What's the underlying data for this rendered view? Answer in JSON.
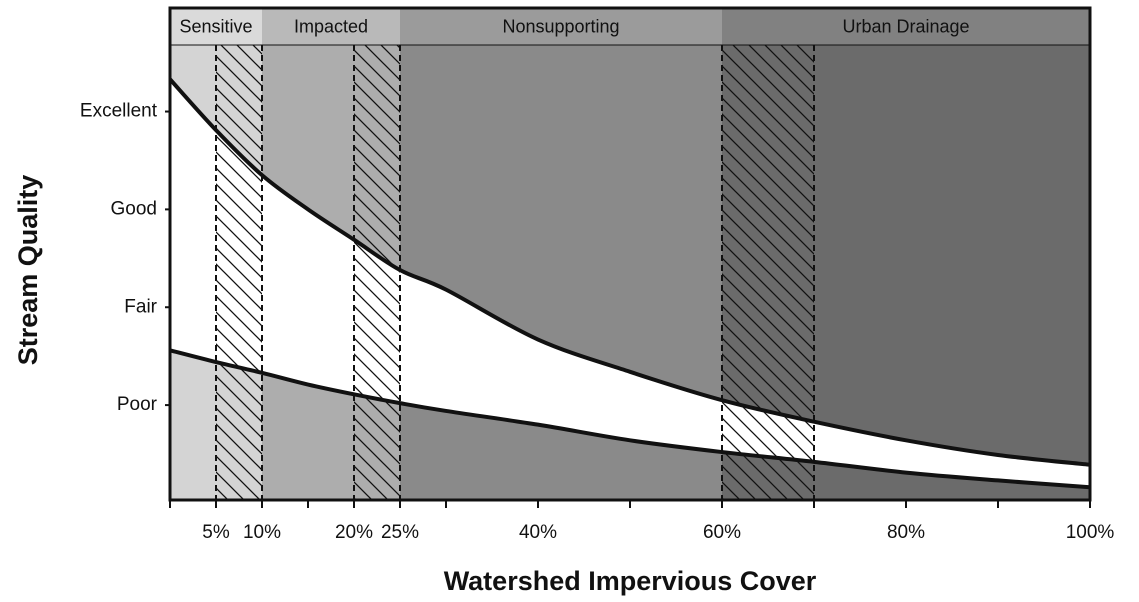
{
  "chart_data": {
    "type": "line",
    "xlabel": "Watershed Impervious Cover",
    "ylabel": "Stream Quality",
    "xlim": [
      0,
      100
    ],
    "xticks": [
      {
        "value": 5,
        "label": "5%"
      },
      {
        "value": 10,
        "label": "10%"
      },
      {
        "value": 20,
        "label": "20%"
      },
      {
        "value": 25,
        "label": "25%"
      },
      {
        "value": 40,
        "label": "40%"
      },
      {
        "value": 60,
        "label": "60%"
      },
      {
        "value": 80,
        "label": "80%"
      },
      {
        "value": 100,
        "label": "100%"
      }
    ],
    "xminor_ticks": [
      0,
      15,
      30,
      50,
      70,
      90
    ],
    "ylim": [
      -0.97,
      3.68
    ],
    "yticks": [
      {
        "value": 0,
        "label": "Poor"
      },
      {
        "value": 1,
        "label": "Fair"
      },
      {
        "value": 2,
        "label": "Good"
      },
      {
        "value": 3,
        "label": "Excellent"
      }
    ],
    "zones": [
      {
        "name": "Sensitive",
        "start": 0,
        "end": 10,
        "color": "#d4d4d4"
      },
      {
        "name": "Impacted",
        "start": 10,
        "end": 25,
        "color": "#adadad"
      },
      {
        "name": "Nonsupporting",
        "start": 25,
        "end": 60,
        "color": "#8a8a8a"
      },
      {
        "name": "Urban Drainage",
        "start": 60,
        "end": 100,
        "color": "#6b6b6b"
      }
    ],
    "transitions": [
      [
        5,
        10
      ],
      [
        20,
        25
      ],
      [
        60,
        70
      ]
    ],
    "x": [
      0,
      5,
      10,
      15,
      20,
      25,
      30,
      40,
      50,
      60,
      70,
      80,
      90,
      100
    ],
    "series": [
      {
        "color": "#111111",
        "values": [
          3.33,
          2.81,
          2.35,
          2.0,
          1.69,
          1.38,
          1.18,
          0.67,
          0.34,
          0.05,
          -0.17,
          -0.36,
          -0.51,
          -0.61
        ]
      },
      {
        "color": "#111111",
        "values": [
          0.56,
          0.44,
          0.33,
          0.21,
          0.11,
          0.02,
          -0.06,
          -0.2,
          -0.36,
          -0.48,
          -0.58,
          -0.69,
          -0.77,
          -0.84
        ]
      }
    ]
  }
}
